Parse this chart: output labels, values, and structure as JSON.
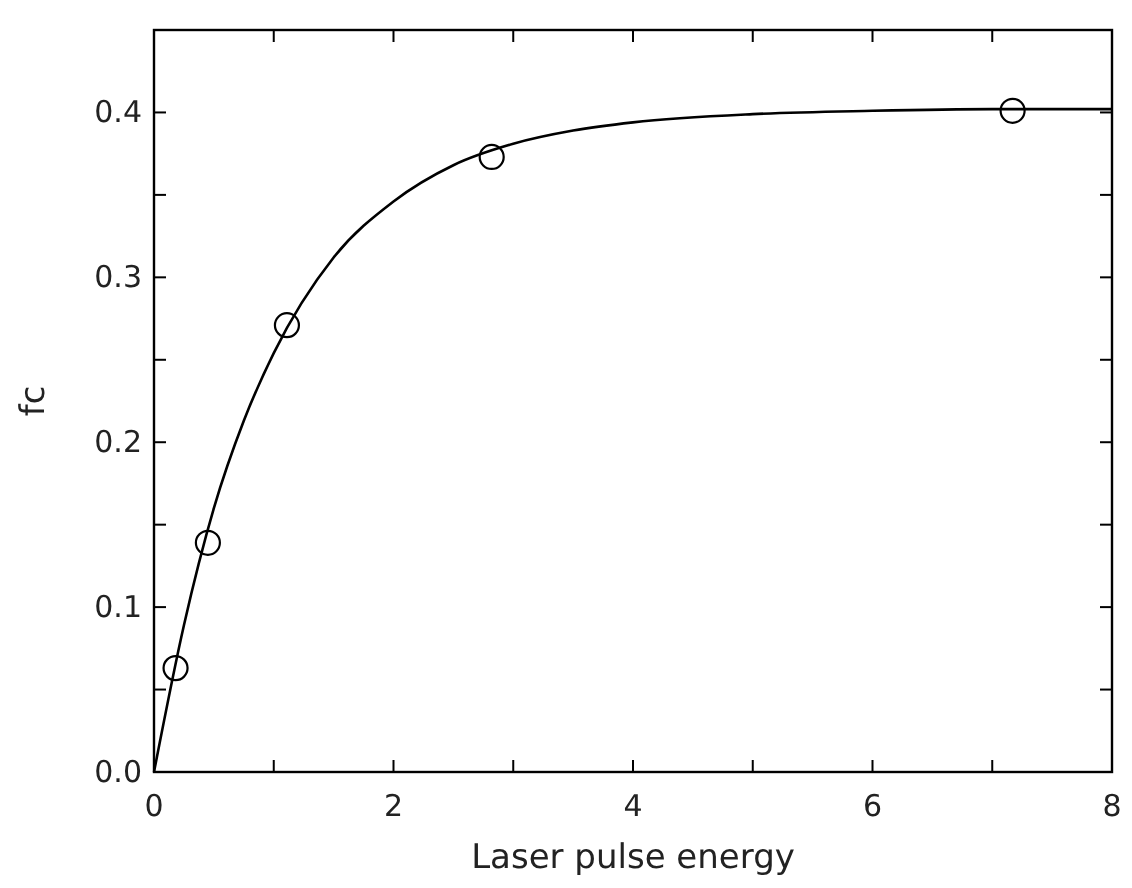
{
  "chart_data": {
    "type": "scatter",
    "xlabel": "Laser pulse energy",
    "ylabel": "fc",
    "xlim": [
      0,
      8
    ],
    "ylim": [
      0,
      0.45
    ],
    "xticks": [
      0,
      {
        "value": 1,
        "label": null
      },
      2,
      {
        "value": 3,
        "label": null
      },
      4,
      {
        "value": 5,
        "label": null
      },
      6,
      {
        "value": 7,
        "label": null
      },
      8
    ],
    "yticks": [
      {
        "value": 0,
        "label": "0.0"
      },
      {
        "value": 0.05,
        "label": null
      },
      0.1,
      {
        "value": 0.15,
        "label": null
      },
      0.2,
      {
        "value": 0.25,
        "label": null
      },
      0.3,
      {
        "value": 0.35,
        "label": null
      },
      0.4
    ],
    "marker": "circle",
    "grid": false,
    "series": [
      {
        "color": "#000000",
        "x": [
          0.18,
          0.45,
          1.11,
          2.82,
          7.17
        ],
        "values": [
          0.063,
          0.139,
          0.271,
          0.373,
          0.401
        ]
      },
      {
        "type": "line",
        "color": "#000000",
        "marker": "none",
        "x": [
          0,
          0.25,
          0.5,
          0.75,
          1,
          1.5,
          2,
          2.5,
          3,
          3.5,
          4,
          5,
          6,
          7,
          8
        ],
        "values": [
          0,
          0.089,
          0.16,
          0.213,
          0.254,
          0.312,
          0.346,
          0.368,
          0.381,
          0.389,
          0.394,
          0.399,
          0.401,
          0.402,
          0.402
        ]
      }
    ]
  }
}
